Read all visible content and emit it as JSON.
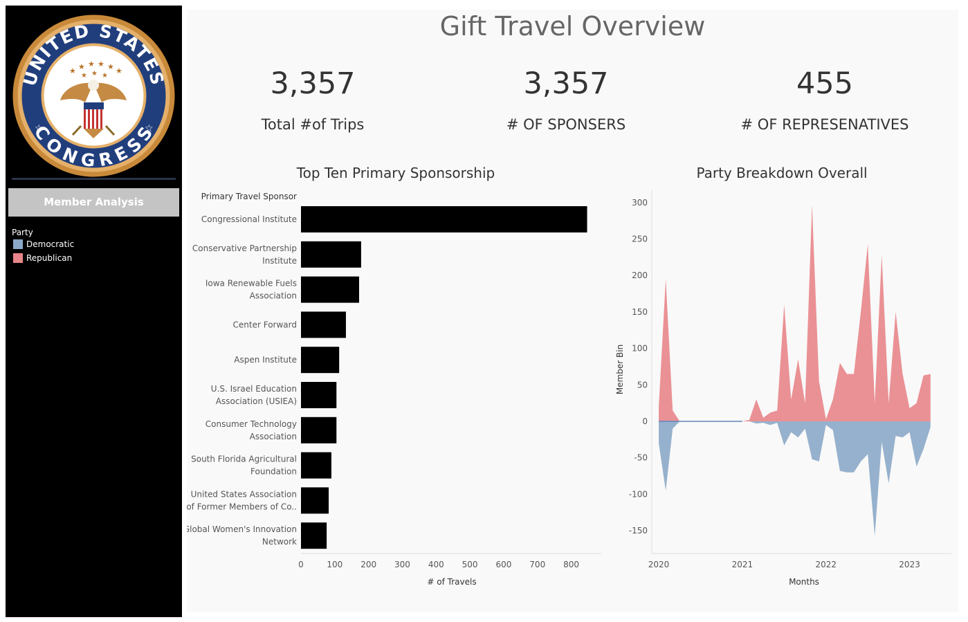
{
  "sidebar": {
    "seal_text_top": "UNITED STATES",
    "seal_text_bottom": "CONGRESS",
    "member_button": "Member Analysis",
    "legend": {
      "title": "Party",
      "items": [
        {
          "label": "Democratic",
          "color": "#8ba8c8"
        },
        {
          "label": "Republican",
          "color": "#e8858a"
        }
      ]
    }
  },
  "header": {
    "title": "Gift Travel Overview"
  },
  "kpis": [
    {
      "value": "3,357",
      "label": "Total #of Trips"
    },
    {
      "value": "3,357",
      "label": "# OF SPONSERS"
    },
    {
      "value": "455",
      "label": "# OF REPRESENATIVES"
    }
  ],
  "chart_data": [
    {
      "type": "bar",
      "title": "Top Ten Primary Sponsorship",
      "category_header": "Primary Travel Sponsor",
      "xlabel": "# of Travels",
      "xlim": [
        0,
        850
      ],
      "xticks": [
        "0",
        "100",
        "200",
        "300",
        "400",
        "500",
        "600",
        "700",
        "800"
      ],
      "bar_color": "#000000",
      "categories": [
        [
          "Congressional Institute"
        ],
        [
          "Conservative Partnership",
          "Institute"
        ],
        [
          "Iowa Renewable Fuels",
          "Association"
        ],
        [
          "Center Forward"
        ],
        [
          "Aspen Institute"
        ],
        [
          "U.S. Israel Education",
          "Association (USIEA)"
        ],
        [
          "Consumer Technology",
          "Association"
        ],
        [
          "South Florida Agricultural",
          "Foundation"
        ],
        [
          "United States Association",
          "of Former Members of Co.."
        ],
        [
          "Global Women's Innovation",
          "Network"
        ]
      ],
      "values": [
        847,
        178,
        172,
        133,
        113,
        105,
        105,
        90,
        82,
        76
      ]
    },
    {
      "type": "area",
      "title": "Party Breakdown Overall",
      "xlabel": "Months",
      "ylabel": "Member Bin",
      "ylim": [
        -180,
        300
      ],
      "yticks": [
        "300",
        "250",
        "200",
        "150",
        "100",
        "50",
        "0",
        "-50",
        "-100",
        "-150"
      ],
      "xticks": [
        "2020",
        "2021",
        "2022",
        "2023"
      ],
      "x_domain": [
        "2019-12",
        "2023-07"
      ],
      "series": [
        {
          "name": "Republican",
          "color": "#e8858a",
          "x": [
            "2020-01",
            "2020-02",
            "2020-03",
            "2020-04",
            "2020-05",
            "2020-06",
            "2020-07",
            "2020-08",
            "2020-09",
            "2020-10",
            "2020-11",
            "2020-12",
            "2021-01",
            "2021-02",
            "2021-03",
            "2021-04",
            "2021-05",
            "2021-06",
            "2021-07",
            "2021-08",
            "2021-09",
            "2021-10",
            "2021-11",
            "2021-12",
            "2022-01",
            "2022-02",
            "2022-03",
            "2022-04",
            "2022-05",
            "2022-06",
            "2022-07",
            "2022-08",
            "2022-09",
            "2022-10",
            "2022-11",
            "2022-12",
            "2023-01",
            "2023-02",
            "2023-03",
            "2023-04"
          ],
          "values": [
            20,
            195,
            15,
            0,
            0,
            0,
            0,
            0,
            0,
            0,
            0,
            0,
            0,
            2,
            30,
            5,
            12,
            15,
            160,
            30,
            85,
            25,
            297,
            55,
            3,
            30,
            80,
            65,
            65,
            150,
            243,
            25,
            228,
            25,
            150,
            65,
            18,
            25,
            63,
            65
          ]
        },
        {
          "name": "Democratic",
          "color": "#8ba8c8",
          "x": [
            "2020-01",
            "2020-02",
            "2020-03",
            "2020-04",
            "2020-05",
            "2020-06",
            "2020-07",
            "2020-08",
            "2020-09",
            "2020-10",
            "2020-11",
            "2020-12",
            "2021-01",
            "2021-02",
            "2021-03",
            "2021-04",
            "2021-05",
            "2021-06",
            "2021-07",
            "2021-08",
            "2021-09",
            "2021-10",
            "2021-11",
            "2021-12",
            "2022-01",
            "2022-02",
            "2022-03",
            "2022-04",
            "2022-05",
            "2022-06",
            "2022-07",
            "2022-08",
            "2022-09",
            "2022-10",
            "2022-11",
            "2022-12",
            "2023-01",
            "2023-02",
            "2023-03",
            "2023-04"
          ],
          "values": [
            -30,
            -95,
            -10,
            0,
            0,
            0,
            0,
            0,
            0,
            0,
            0,
            0,
            0,
            0,
            -3,
            -2,
            -5,
            -2,
            -33,
            -15,
            -22,
            -10,
            -52,
            -55,
            -5,
            -12,
            -68,
            -70,
            -70,
            -55,
            -45,
            -157,
            -28,
            -85,
            -20,
            -22,
            -15,
            -62,
            -38,
            -8
          ]
        }
      ]
    }
  ]
}
